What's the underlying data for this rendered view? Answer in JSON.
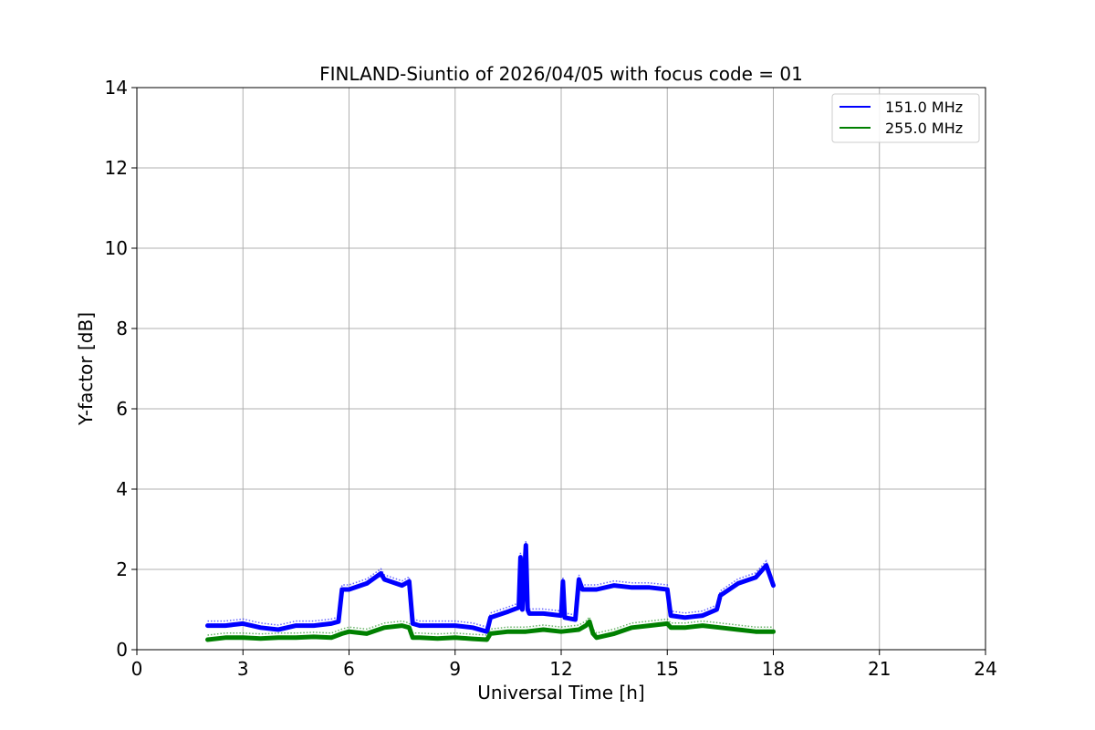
{
  "chart_data": {
    "type": "line",
    "title": "FINLAND-Siuntio of 2026/04/05 with focus code = 01",
    "xlabel": "Universal Time [h]",
    "ylabel": "Y-factor [dB]",
    "xlim": [
      0,
      24
    ],
    "ylim": [
      0,
      14
    ],
    "xticks": [
      0,
      3,
      6,
      9,
      12,
      15,
      18,
      21,
      24
    ],
    "yticks": [
      0,
      2,
      4,
      6,
      8,
      10,
      12,
      14
    ],
    "grid": true,
    "legend_position": "upper-right",
    "series": [
      {
        "name": " 151.0 MHz",
        "color": "#0000ff",
        "x": [
          2.0,
          2.5,
          3.0,
          3.5,
          4.0,
          4.5,
          5.0,
          5.5,
          5.7,
          5.8,
          6.0,
          6.5,
          6.9,
          7.0,
          7.5,
          7.7,
          7.8,
          8.0,
          8.5,
          9.0,
          9.5,
          9.9,
          10.0,
          10.5,
          10.8,
          10.85,
          10.9,
          11.0,
          11.05,
          11.1,
          11.5,
          12.0,
          12.05,
          12.1,
          12.4,
          12.5,
          12.6,
          13.0,
          13.5,
          14.0,
          14.5,
          15.0,
          15.1,
          15.5,
          16.0,
          16.4,
          16.5,
          17.0,
          17.5,
          17.8,
          18.0
        ],
        "values": [
          0.6,
          0.6,
          0.65,
          0.55,
          0.5,
          0.6,
          0.6,
          0.65,
          0.7,
          1.5,
          1.5,
          1.65,
          1.9,
          1.75,
          1.6,
          1.7,
          0.65,
          0.6,
          0.6,
          0.6,
          0.55,
          0.45,
          0.8,
          0.95,
          1.05,
          2.3,
          1.0,
          2.6,
          1.0,
          0.9,
          0.9,
          0.85,
          1.7,
          0.8,
          0.75,
          1.75,
          1.5,
          1.5,
          1.6,
          1.55,
          1.55,
          1.5,
          0.85,
          0.8,
          0.85,
          1.0,
          1.35,
          1.65,
          1.8,
          2.1,
          1.6
        ]
      },
      {
        "name": "255.0 MHz",
        "color": "#008000",
        "x": [
          2.0,
          2.5,
          3.0,
          3.5,
          4.0,
          4.5,
          5.0,
          5.5,
          5.8,
          6.0,
          6.5,
          7.0,
          7.5,
          7.7,
          7.8,
          8.0,
          8.5,
          9.0,
          9.5,
          9.9,
          10.0,
          10.5,
          11.0,
          11.5,
          12.0,
          12.5,
          12.7,
          12.8,
          12.9,
          13.0,
          13.5,
          14.0,
          14.5,
          15.0,
          15.1,
          15.5,
          16.0,
          16.5,
          17.0,
          17.5,
          18.0
        ],
        "values": [
          0.25,
          0.3,
          0.3,
          0.28,
          0.3,
          0.3,
          0.32,
          0.3,
          0.4,
          0.45,
          0.4,
          0.55,
          0.6,
          0.55,
          0.3,
          0.3,
          0.28,
          0.3,
          0.27,
          0.25,
          0.4,
          0.45,
          0.45,
          0.5,
          0.45,
          0.5,
          0.6,
          0.7,
          0.4,
          0.3,
          0.4,
          0.55,
          0.6,
          0.65,
          0.55,
          0.55,
          0.6,
          0.55,
          0.5,
          0.45,
          0.45
        ]
      }
    ]
  }
}
